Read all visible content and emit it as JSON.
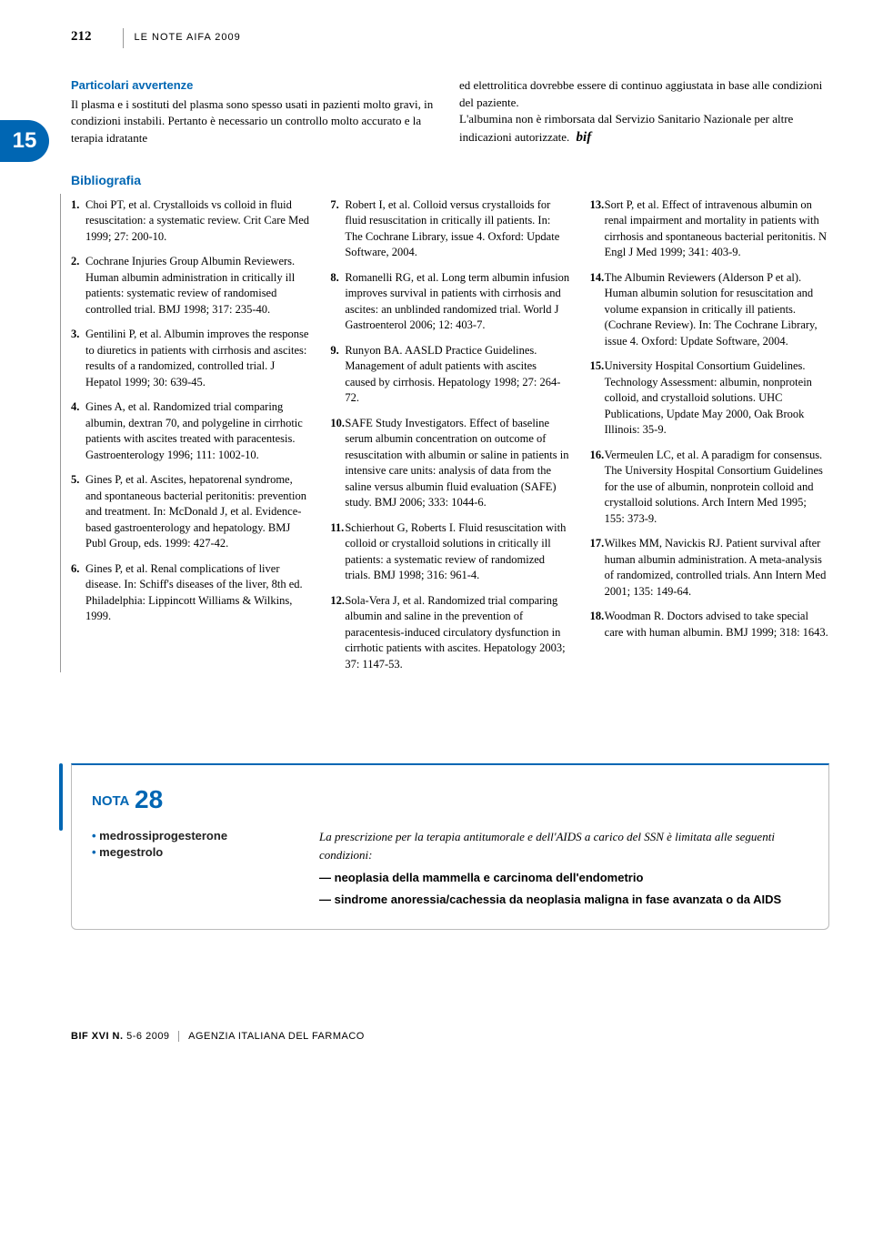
{
  "page_number": "212",
  "header_title": "LE NOTE AIFA 2009",
  "chapter_tab": "15",
  "colors": {
    "accent": "#0066b3",
    "text": "#000000",
    "rule": "#999999"
  },
  "intro": {
    "section_heading": "Particolari avvertenze",
    "col1": "Il plasma e i sostituti del plasma sono spesso usati in pazienti molto gravi, in condizioni instabili. Pertanto è necessario un controllo molto accurato e la terapia idratante",
    "col2_part1": "ed elettrolitica dovrebbe essere di continuo aggiustata in base alle condizioni del paziente.",
    "col2_part2": "L'albumina non è rimborsata dal Servizio Sanitario Nazionale per altre indicazioni autorizzate.",
    "bif_mark": "bif"
  },
  "bibliography": {
    "title": "Bibliografia",
    "items": [
      {
        "n": "1.",
        "text": "Choi PT, et al. Crystalloids vs colloid in fluid resuscitation: a systematic review. Crit Care Med 1999; 27: 200-10."
      },
      {
        "n": "2.",
        "text": "Cochrane Injuries Group Albumin Reviewers. Human albumin administration in critically ill patients: systematic review of randomised controlled trial. BMJ 1998; 317: 235-40."
      },
      {
        "n": "3.",
        "text": "Gentilini P, et al. Albumin improves the response to diuretics in patients with cirrhosis and ascites: results of a randomized, controlled trial. J Hepatol 1999; 30: 639-45."
      },
      {
        "n": "4.",
        "text": "Gines A, et al. Randomized trial comparing albumin, dextran 70, and polygeline in cirrhotic patients with ascites treated with paracentesis. Gastroenterology 1996; 111: 1002-10."
      },
      {
        "n": "5.",
        "text": "Gines P, et al. Ascites, hepatorenal syndrome, and spontaneous bacterial peritonitis: prevention and treatment. In: McDonald J, et al. Evidence-based gastroenterology and hepatology. BMJ Publ Group, eds. 1999: 427-42."
      },
      {
        "n": "6.",
        "text": "Gines P, et al. Renal complications of liver disease. In: Schiff's diseases of the liver, 8th ed. Philadelphia: Lippincott Williams & Wilkins, 1999."
      },
      {
        "n": "7.",
        "text": "Robert I, et al. Colloid versus crystalloids for fluid resuscitation in critically ill patients. In: The Cochrane Library, issue 4. Oxford: Update Software, 2004."
      },
      {
        "n": "8.",
        "text": "Romanelli RG, et al. Long term albumin infusion improves survival in patients with cirrhosis and ascites: an unblinded randomized trial. World J Gastroenterol 2006; 12: 403-7."
      },
      {
        "n": "9.",
        "text": "Runyon BA. AASLD Practice Guidelines. Management of adult patients with ascites caused by cirrhosis. Hepatology 1998; 27: 264-72."
      },
      {
        "n": "10.",
        "text": "SAFE Study Investigators. Effect of baseline serum albumin concentration on outcome of resuscitation with albumin or saline in patients in intensive care units: analysis of data from the saline versus albumin fluid evaluation (SAFE) study. BMJ 2006; 333: 1044-6."
      },
      {
        "n": "11.",
        "text": "Schierhout G, Roberts I. Fluid resuscitation with colloid or crystalloid solutions in critically ill patients: a systematic review of randomized trials. BMJ 1998; 316: 961-4."
      },
      {
        "n": "12.",
        "text": "Sola-Vera J, et al. Randomized trial comparing albumin and saline in the prevention of paracentesis-induced circulatory dysfunction in cirrhotic patients with ascites. Hepatology 2003; 37: 1147-53."
      },
      {
        "n": "13.",
        "text": "Sort P, et al. Effect of intravenous albumin on renal impairment and mortality in patients with cirrhosis and spontaneous bacterial peritonitis. N Engl J Med 1999; 341: 403-9."
      },
      {
        "n": "14.",
        "text": "The Albumin Reviewers (Alderson P et al). Human albumin solution for resuscitation and volume expansion in critically ill patients. (Cochrane Review). In: The Cochrane Library, issue 4. Oxford: Update Software, 2004."
      },
      {
        "n": "15.",
        "text": "University Hospital Consortium Guidelines. Technology Assessment: albumin, nonprotein colloid, and crystalloid solutions. UHC Publications, Update May 2000, Oak Brook Illinois: 35-9."
      },
      {
        "n": "16.",
        "text": "Vermeulen LC, et al. A paradigm for consensus. The University Hospital Consortium Guidelines for the use of albumin, nonprotein colloid and crystalloid solutions. Arch Intern Med 1995; 155: 373-9."
      },
      {
        "n": "17.",
        "text": "Wilkes MM, Navickis RJ. Patient survival after human albumin administration. A meta-analysis of randomized, controlled trials. Ann Intern Med 2001; 135: 149-64."
      },
      {
        "n": "18.",
        "text": "Woodman R. Doctors advised to take special care with human albumin. BMJ 1999; 318: 1643."
      }
    ]
  },
  "nota": {
    "label": "NOTA",
    "number": "28",
    "drugs": [
      "medrossiprogesterone",
      "megestrolo"
    ],
    "lead": "La prescrizione per la terapia antitumorale e dell'AIDS a carico del SSN è limitata alle seguenti condizioni:",
    "conditions": [
      "neoplasia della mammella e carcinoma dell'endometrio",
      "sindrome anoressia/cachessia da neoplasia maligna in fase avanzata o da AIDS"
    ]
  },
  "footer": {
    "bif": "BIF XVI N.",
    "issue": "5-6 2009",
    "agency": "AGENZIA ITALIANA DEL FARMACO"
  }
}
